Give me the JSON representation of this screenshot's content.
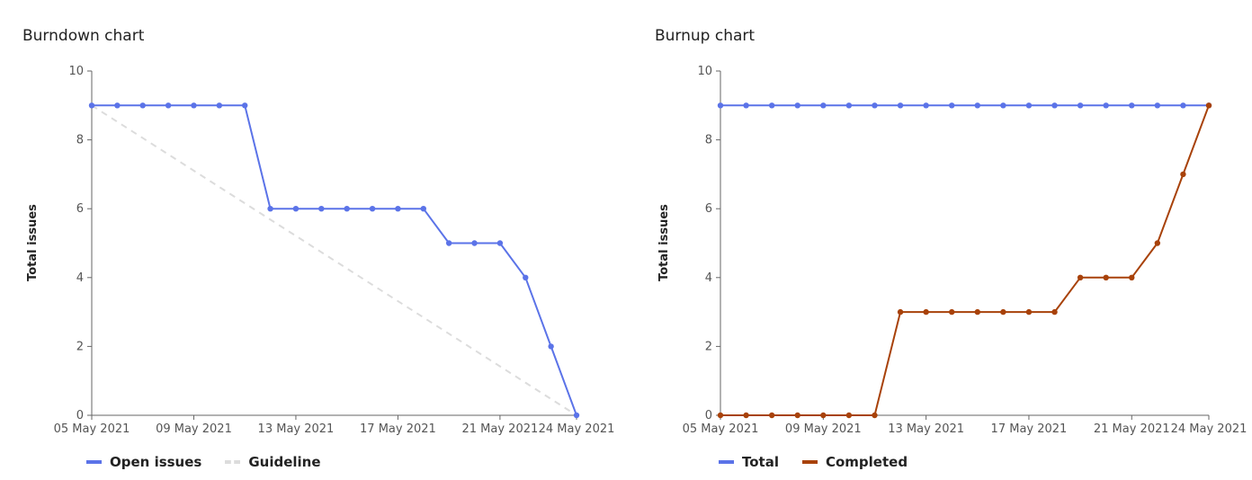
{
  "charts": [
    {
      "title": "Burndown chart",
      "ylabel": "Total issues",
      "legend": [
        {
          "label": "Open issues",
          "color": "#5b73e8",
          "style": "solid"
        },
        {
          "label": "Guideline",
          "color": "#dcdcdc",
          "style": "dashed"
        }
      ]
    },
    {
      "title": "Burnup chart",
      "ylabel": "Total issues",
      "legend": [
        {
          "label": "Total",
          "color": "#5b73e8",
          "style": "solid"
        },
        {
          "label": "Completed",
          "color": "#a8420a",
          "style": "solid"
        }
      ]
    }
  ],
  "chart_data": [
    {
      "type": "line",
      "title": "Burndown chart",
      "xlabel": "",
      "ylabel": "Total issues",
      "ylim": [
        0,
        10
      ],
      "yticks": [
        0,
        2,
        4,
        6,
        8,
        10
      ],
      "xlim": [
        "2021-05-05",
        "2021-05-24"
      ],
      "xtick_labels": [
        "05 May 2021",
        "09 May 2021",
        "13 May 2021",
        "17 May 2021",
        "21 May 2021",
        "24 May 2021"
      ],
      "xtick_dates": [
        "2021-05-05",
        "2021-05-09",
        "2021-05-13",
        "2021-05-17",
        "2021-05-21",
        "2021-05-24"
      ],
      "x": [
        "2021-05-05",
        "2021-05-06",
        "2021-05-07",
        "2021-05-08",
        "2021-05-09",
        "2021-05-10",
        "2021-05-11",
        "2021-05-12",
        "2021-05-13",
        "2021-05-14",
        "2021-05-15",
        "2021-05-16",
        "2021-05-17",
        "2021-05-18",
        "2021-05-19",
        "2021-05-20",
        "2021-05-21",
        "2021-05-22",
        "2021-05-23",
        "2021-05-24"
      ],
      "grid": false,
      "legend_position": "bottom-left",
      "series": [
        {
          "name": "Open issues",
          "color": "#5b73e8",
          "dashed": false,
          "markers": true,
          "values": [
            9,
            9,
            9,
            9,
            9,
            9,
            9,
            6,
            6,
            6,
            6,
            6,
            6,
            6,
            5,
            5,
            5,
            4,
            2,
            0
          ]
        },
        {
          "name": "Guideline",
          "color": "#dcdcdc",
          "dashed": true,
          "markers": false,
          "points": [
            [
              "2021-05-05",
              9
            ],
            [
              "2021-05-24",
              0
            ]
          ]
        }
      ]
    },
    {
      "type": "line",
      "title": "Burnup chart",
      "xlabel": "",
      "ylabel": "Total issues",
      "ylim": [
        0,
        10
      ],
      "yticks": [
        0,
        2,
        4,
        6,
        8,
        10
      ],
      "xlim": [
        "2021-05-05",
        "2021-05-24"
      ],
      "xtick_labels": [
        "05 May 2021",
        "09 May 2021",
        "13 May 2021",
        "17 May 2021",
        "21 May 2021",
        "24 May 2021"
      ],
      "xtick_dates": [
        "2021-05-05",
        "2021-05-09",
        "2021-05-13",
        "2021-05-17",
        "2021-05-21",
        "2021-05-24"
      ],
      "x": [
        "2021-05-05",
        "2021-05-06",
        "2021-05-07",
        "2021-05-08",
        "2021-05-09",
        "2021-05-10",
        "2021-05-11",
        "2021-05-12",
        "2021-05-13",
        "2021-05-14",
        "2021-05-15",
        "2021-05-16",
        "2021-05-17",
        "2021-05-18",
        "2021-05-19",
        "2021-05-20",
        "2021-05-21",
        "2021-05-22",
        "2021-05-23",
        "2021-05-24"
      ],
      "grid": false,
      "legend_position": "bottom-left",
      "series": [
        {
          "name": "Total",
          "color": "#5b73e8",
          "dashed": false,
          "markers": true,
          "values": [
            9,
            9,
            9,
            9,
            9,
            9,
            9,
            9,
            9,
            9,
            9,
            9,
            9,
            9,
            9,
            9,
            9,
            9,
            9,
            9
          ]
        },
        {
          "name": "Completed",
          "color": "#a8420a",
          "dashed": false,
          "markers": true,
          "values": [
            0,
            0,
            0,
            0,
            0,
            0,
            0,
            3,
            3,
            3,
            3,
            3,
            3,
            3,
            4,
            4,
            4,
            5,
            7,
            9
          ]
        }
      ]
    }
  ]
}
